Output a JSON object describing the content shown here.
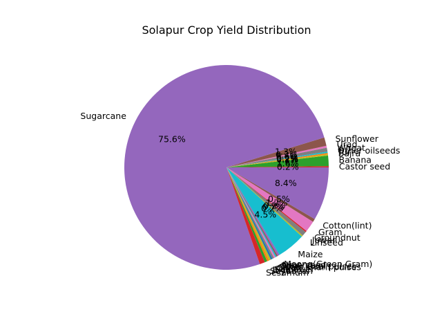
{
  "chart_data": {
    "type": "pie",
    "title": "Solapur Crop Yield Distribution",
    "start_angle_deg": 0,
    "direction": "counterclockwise",
    "label_threshold_note": "",
    "slices": [
      {
        "label": "Castor seed",
        "value": 0.2,
        "color": "#d62728",
        "show_pct": true
      },
      {
        "label": "Banana",
        "value": 1.6,
        "color": "#2ca02c",
        "show_pct": true
      },
      {
        "label": "Bajra",
        "value": 0.2,
        "color": "#bcbd22",
        "show_pct": true
      },
      {
        "label": "Tur",
        "value": 0.2,
        "color": "#ff7f0e",
        "show_pct": true
      },
      {
        "label": "Other oilseeds",
        "value": 0.2,
        "color": "#17becf",
        "show_pct": true
      },
      {
        "label": "Wheat",
        "value": 0.6,
        "color": "#7f7f7f",
        "show_pct": true
      },
      {
        "label": "Urad",
        "value": 0.3,
        "color": "#e377c2",
        "show_pct": true
      },
      {
        "label": "Sunflower",
        "value": 1.3,
        "color": "#8c564b",
        "show_pct": true
      },
      {
        "label": "Sugarcane",
        "value": 73.6,
        "color": "#9467bd",
        "show_pct": true
      },
      {
        "label": "Sesamum",
        "value": 0.8,
        "color": "#d62728",
        "show_pct": false
      },
      {
        "label": "Soyabean",
        "value": 0.4,
        "color": "#2ca02c",
        "show_pct": false
      },
      {
        "label": "Rice",
        "value": 0.3,
        "color": "#ff7f0e",
        "show_pct": false
      },
      {
        "label": "Safflower",
        "value": 0.3,
        "color": "#bcbd22",
        "show_pct": false
      },
      {
        "label": "Onion",
        "value": 0.3,
        "color": "#1f77b4",
        "show_pct": false
      },
      {
        "label": "Other Kharif pulses",
        "value": 0.25,
        "color": "#7f7f7f",
        "show_pct": false
      },
      {
        "label": "Other Rabi pulses",
        "value": 0.25,
        "color": "#e377c2",
        "show_pct": false
      },
      {
        "label": "Ragi",
        "value": 0.2,
        "color": "#17becf",
        "show_pct": false
      },
      {
        "label": "Nigerseed",
        "value": 0.2,
        "color": "#8c564b",
        "show_pct": false
      },
      {
        "label": "Moong(Green Gram)",
        "value": 0.3,
        "color": "#9467bd",
        "show_pct": false
      },
      {
        "label": "Maize",
        "value": 4.4,
        "color": "#17becf",
        "show_pct": true
      },
      {
        "label": "Linseed",
        "value": 0.2,
        "color": "#bcbd22",
        "show_pct": true
      },
      {
        "label": "Jowar",
        "value": 0.7,
        "color": "#7f7f7f",
        "show_pct": true
      },
      {
        "label": "Groundnut",
        "value": 0.2,
        "color": "#d62728",
        "show_pct": true
      },
      {
        "label": "Gram",
        "value": 1.7,
        "color": "#e377c2",
        "show_pct": true
      },
      {
        "label": "Cotton(lint)",
        "value": 0.5,
        "color": "#8c564b",
        "show_pct": true
      },
      {
        "label": "",
        "value": 8.2,
        "color": "#9467bd",
        "show_pct": true
      }
    ]
  }
}
